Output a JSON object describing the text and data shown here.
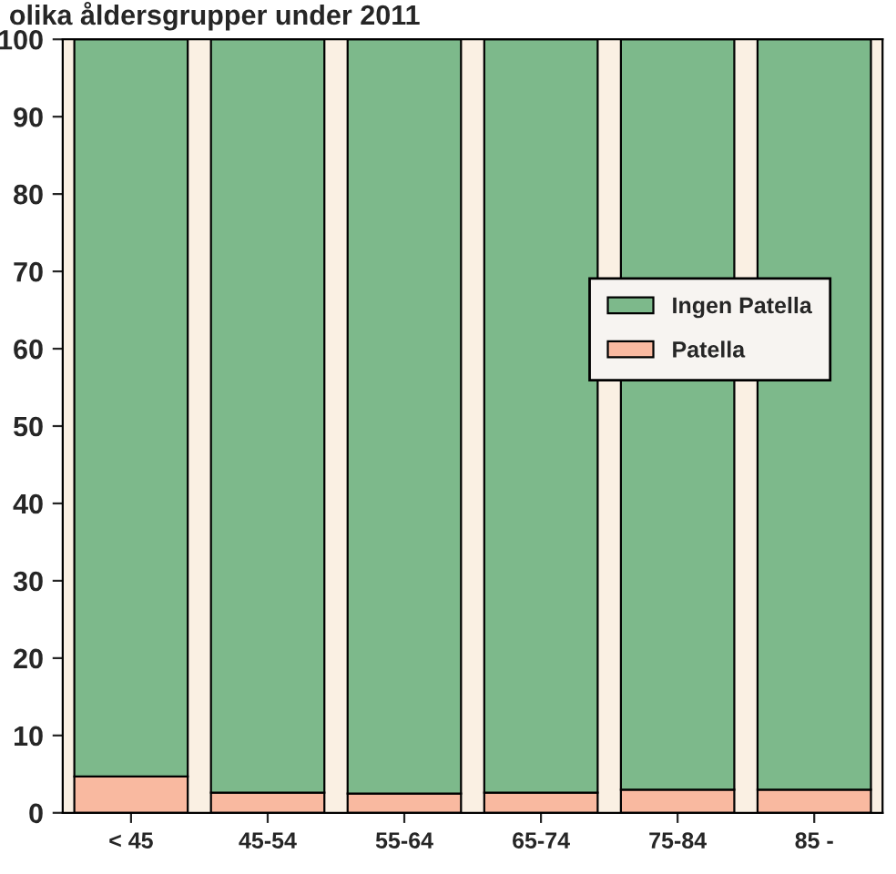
{
  "chart_data": {
    "type": "bar",
    "title": "olika åldersgrupper under 2011",
    "categories": [
      "< 45",
      "45-54",
      "55-64",
      "65-74",
      "75-84",
      "85 -"
    ],
    "stacked": true,
    "series": [
      {
        "name": "Patella",
        "color": "#f9b9a0",
        "values": [
          4.7,
          2.6,
          2.5,
          2.6,
          3.0,
          3.0
        ]
      },
      {
        "name": "Ingen Patella",
        "color": "#7db98b",
        "values": [
          95.3,
          97.4,
          97.5,
          97.4,
          97.0,
          97.0
        ]
      }
    ],
    "ylim": [
      0,
      100
    ],
    "yticks": [
      0,
      10,
      20,
      30,
      40,
      50,
      60,
      70,
      80,
      90,
      100
    ],
    "grid": false,
    "legend": "right"
  }
}
